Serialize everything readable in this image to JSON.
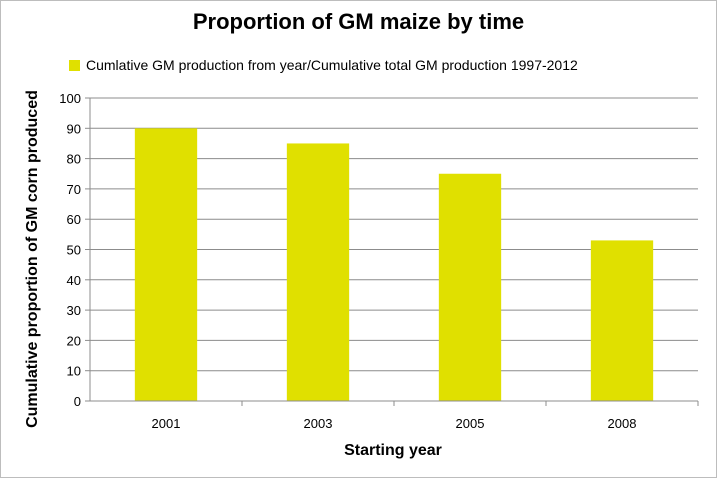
{
  "chart_data": {
    "type": "bar",
    "title": "Proportion of GM maize by time",
    "xlabel": "Starting year",
    "ylabel": "Cumulative proportion of GM corn produced",
    "categories": [
      "2001",
      "2003",
      "2005",
      "2008"
    ],
    "series": [
      {
        "name": "Cumlative GM production from year/Cumulative total GM production 1997-2012",
        "values": [
          90,
          85,
          75,
          53
        ]
      }
    ],
    "ylim": [
      0,
      100
    ],
    "yticks": [
      "0",
      "10",
      "20",
      "30",
      "40",
      "50",
      "60",
      "70",
      "80",
      "90",
      "100"
    ],
    "grid": true,
    "legend_position": "top",
    "bar_color": "#e0e000",
    "grid_color": "#8c8c8c"
  }
}
